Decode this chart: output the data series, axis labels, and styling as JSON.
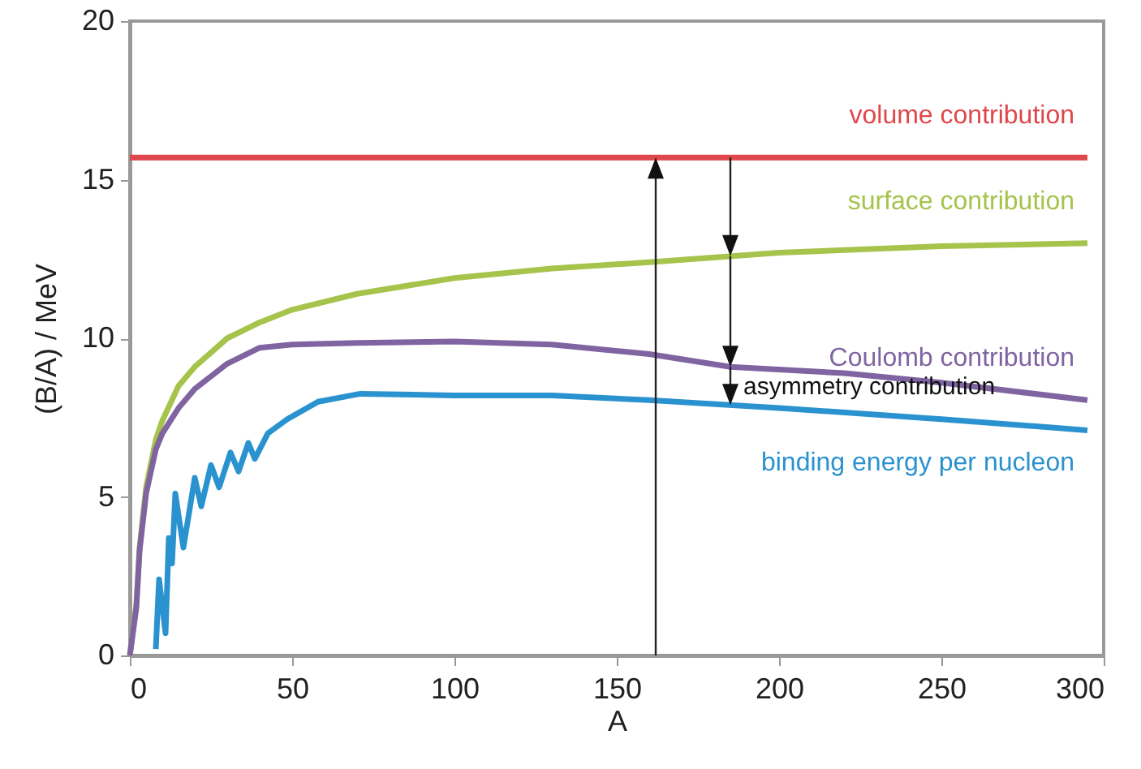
{
  "chart_data": {
    "type": "line",
    "xlabel": "A",
    "ylabel": "(B/A) / MeV",
    "xlim": [
      0,
      300
    ],
    "xticks": [
      0,
      50,
      100,
      150,
      200,
      250,
      300
    ],
    "ylim": [
      0,
      20
    ],
    "yticks": [
      0,
      5,
      10,
      15,
      20
    ],
    "grid": false,
    "annotations": [
      {
        "text": "asymmetry contribution",
        "x": 185,
        "y": 9.1
      }
    ],
    "series": [
      {
        "name": "volume contribution",
        "color": "#e0474c",
        "x": [
          0,
          295
        ],
        "values": [
          15.7,
          15.7
        ]
      },
      {
        "name": "surface contribution",
        "color": "#a6c34b",
        "x": [
          0,
          2,
          3,
          5,
          8,
          10,
          15,
          20,
          30,
          40,
          50,
          70,
          100,
          130,
          160,
          200,
          250,
          295
        ],
        "values": [
          0,
          1.6,
          3.4,
          5.3,
          6.8,
          7.4,
          8.5,
          9.1,
          10.0,
          10.5,
          10.9,
          11.4,
          11.9,
          12.2,
          12.4,
          12.7,
          12.9,
          13.0
        ]
      },
      {
        "name": "Coulomb contribution",
        "color": "#8064a2",
        "x": [
          0,
          2,
          3,
          5,
          8,
          10,
          15,
          20,
          30,
          40,
          50,
          70,
          100,
          130,
          160,
          185,
          220,
          250,
          295
        ],
        "values": [
          0,
          1.5,
          3.3,
          5.1,
          6.5,
          7.0,
          7.8,
          8.4,
          9.2,
          9.7,
          9.8,
          9.85,
          9.9,
          9.8,
          9.5,
          9.1,
          8.9,
          8.6,
          8.05
        ]
      },
      {
        "name": "binding energy per nucleon",
        "color": "#2a92cf",
        "x": [
          8,
          9,
          11,
          12,
          13,
          14,
          16.5,
          20,
          22,
          25,
          27.5,
          31,
          33.5,
          36.5,
          38.5,
          42.5,
          48.5,
          58,
          71,
          100,
          130,
          160,
          200,
          250,
          295
        ],
        "values": [
          0.2,
          2.4,
          0.7,
          3.7,
          2.9,
          5.1,
          3.4,
          5.6,
          4.7,
          6.0,
          5.3,
          6.4,
          5.8,
          6.7,
          6.2,
          7.0,
          7.45,
          8.0,
          8.25,
          8.2,
          8.2,
          8.05,
          7.8,
          7.45,
          7.1
        ]
      }
    ]
  }
}
